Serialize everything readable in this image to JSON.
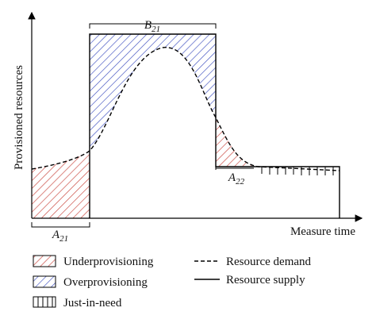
{
  "y_axis_label": "Provisioned resources",
  "x_axis_label": "Measure time",
  "regions": {
    "B": {
      "base": "B",
      "sub": "21"
    },
    "A_left": {
      "base": "A",
      "sub": "21"
    },
    "A_right": {
      "base": "A",
      "sub": "22"
    }
  },
  "legend": {
    "underprovisioning": "Underprovisioning",
    "overprovisioning": "Overprovisioning",
    "just_in_need": "Just-in-need",
    "resource_demand": "Resource demand",
    "resource_supply": "Resource supply"
  }
}
